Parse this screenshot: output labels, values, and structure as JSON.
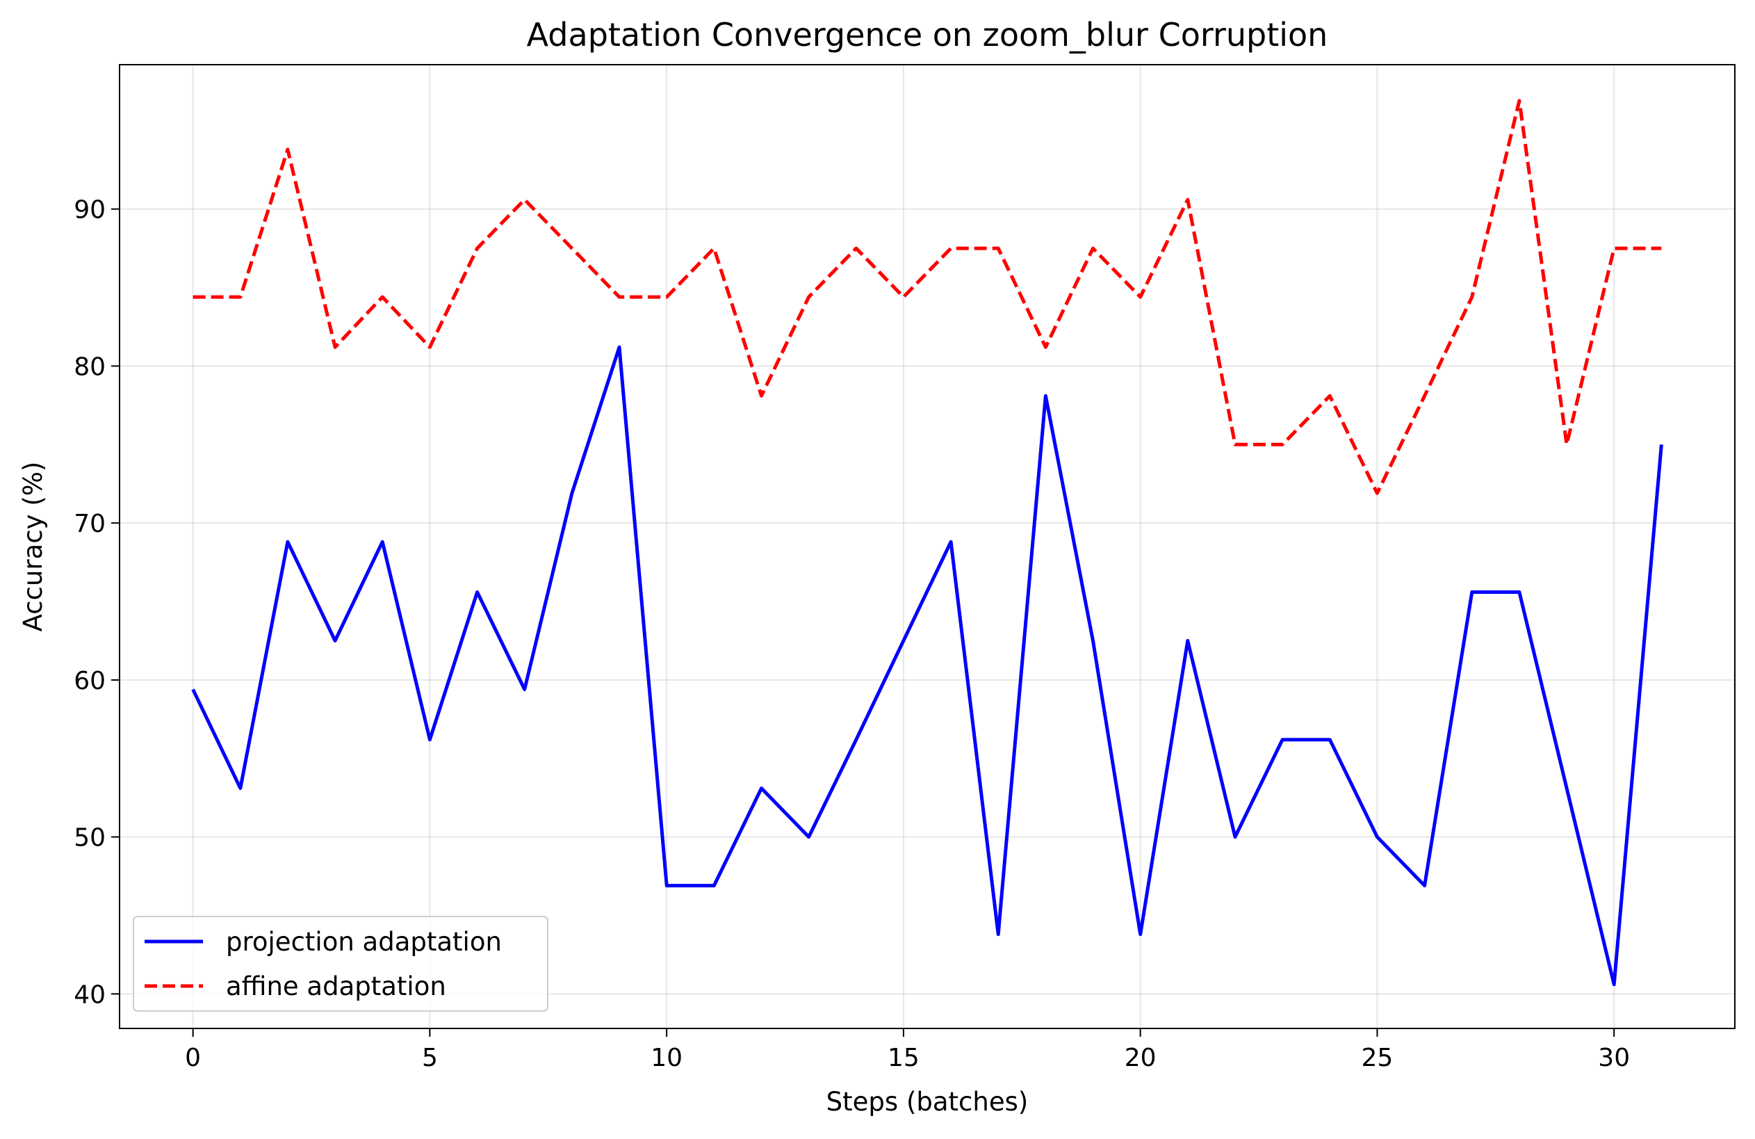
{
  "chart_data": {
    "type": "line",
    "title": "Adaptation Convergence on zoom_blur Corruption",
    "xlabel": "Steps (batches)",
    "ylabel": "Accuracy (%)",
    "xlim": [
      -1.55,
      32.55
    ],
    "ylim": [
      37.8,
      99.2
    ],
    "xticks": [
      0,
      5,
      10,
      15,
      20,
      25,
      30
    ],
    "yticks": [
      40,
      50,
      60,
      70,
      80,
      90
    ],
    "grid": true,
    "legend_position": "lower-left",
    "x": [
      0,
      1,
      2,
      3,
      4,
      5,
      6,
      7,
      8,
      9,
      10,
      11,
      12,
      13,
      14,
      15,
      16,
      17,
      18,
      19,
      20,
      21,
      22,
      23,
      24,
      25,
      26,
      27,
      28,
      29,
      30,
      31
    ],
    "series": [
      {
        "name": "projection adaptation",
        "color": "#0000ff",
        "linestyle": "solid",
        "values": [
          59.4,
          53.1,
          68.8,
          62.5,
          68.8,
          56.2,
          65.6,
          59.4,
          71.9,
          81.2,
          46.9,
          46.9,
          53.1,
          50.0,
          56.2,
          62.5,
          68.8,
          43.8,
          78.1,
          62.5,
          43.8,
          62.5,
          50.0,
          56.2,
          56.2,
          50.0,
          46.9,
          65.6,
          65.6,
          53.1,
          40.6,
          75.0
        ]
      },
      {
        "name": "affine adaptation",
        "color": "#ff0000",
        "linestyle": "dashed",
        "values": [
          84.4,
          84.4,
          93.8,
          81.2,
          84.4,
          81.2,
          87.5,
          90.6,
          87.5,
          84.4,
          84.4,
          87.5,
          78.1,
          84.4,
          87.5,
          84.4,
          87.5,
          87.5,
          81.2,
          87.5,
          84.4,
          90.6,
          75.0,
          75.0,
          78.1,
          71.9,
          78.1,
          84.4,
          96.9,
          75.0,
          87.5,
          87.5
        ]
      }
    ]
  }
}
